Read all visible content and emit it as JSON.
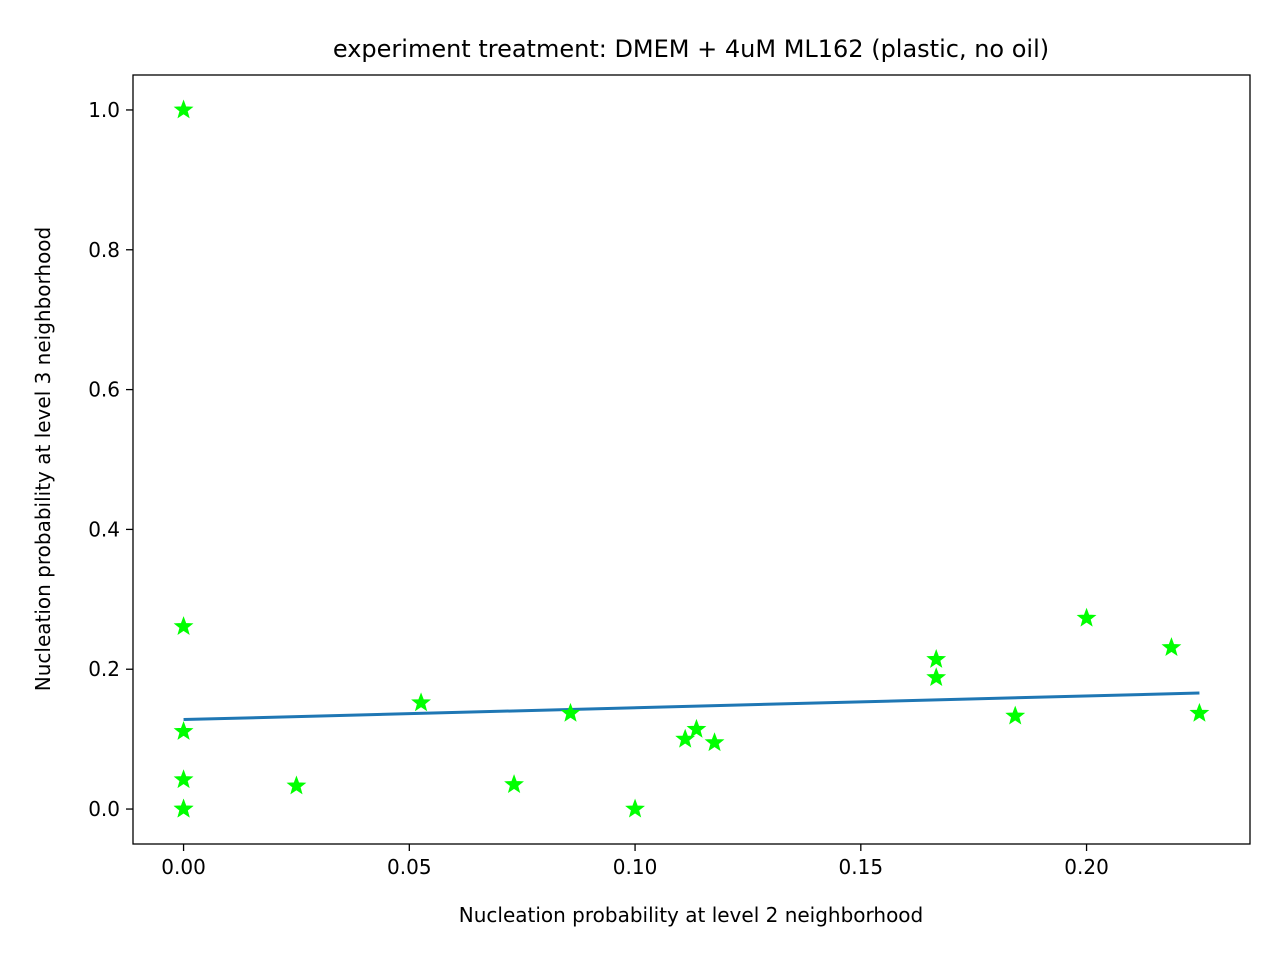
{
  "chart_data": {
    "type": "scatter",
    "title": "experiment treatment: DMEM + 4uM ML162 (plastic, no oil)",
    "xlabel": "Nucleation probability at level 2 neighborhood",
    "ylabel": "Nucleation probability at level 3 neighborhood",
    "xlim": [
      -0.0112,
      0.2362
    ],
    "ylim": [
      -0.05,
      1.05
    ],
    "xticks": [
      0.0,
      0.05,
      0.1,
      0.15,
      0.2
    ],
    "xtick_labels": [
      "0.00",
      "0.05",
      "0.10",
      "0.15",
      "0.20"
    ],
    "yticks": [
      0.0,
      0.2,
      0.4,
      0.6,
      0.8,
      1.0
    ],
    "ytick_labels": [
      "0.0",
      "0.2",
      "0.4",
      "0.6",
      "0.8",
      "1.0"
    ],
    "grid": false,
    "points": {
      "marker": "star",
      "color": "#00ff00",
      "x": [
        0.0,
        0.0,
        0.0,
        0.0,
        0.0,
        0.0,
        0.025,
        0.0526,
        0.0732,
        0.0857,
        0.1,
        0.1111,
        0.1136,
        0.1176,
        0.1667,
        0.1667,
        0.1842,
        0.2,
        0.2188,
        0.225
      ],
      "y": [
        1.0,
        0.261,
        0.111,
        0.042,
        0.0,
        0.0,
        0.033,
        0.152,
        0.035,
        0.137,
        0.0,
        0.1,
        0.114,
        0.095,
        0.214,
        0.188,
        0.133,
        0.273,
        0.231,
        0.137
      ]
    },
    "fit_line": {
      "color": "#1f77b4",
      "x": [
        0.0,
        0.225
      ],
      "y": [
        0.128,
        0.166
      ]
    }
  }
}
